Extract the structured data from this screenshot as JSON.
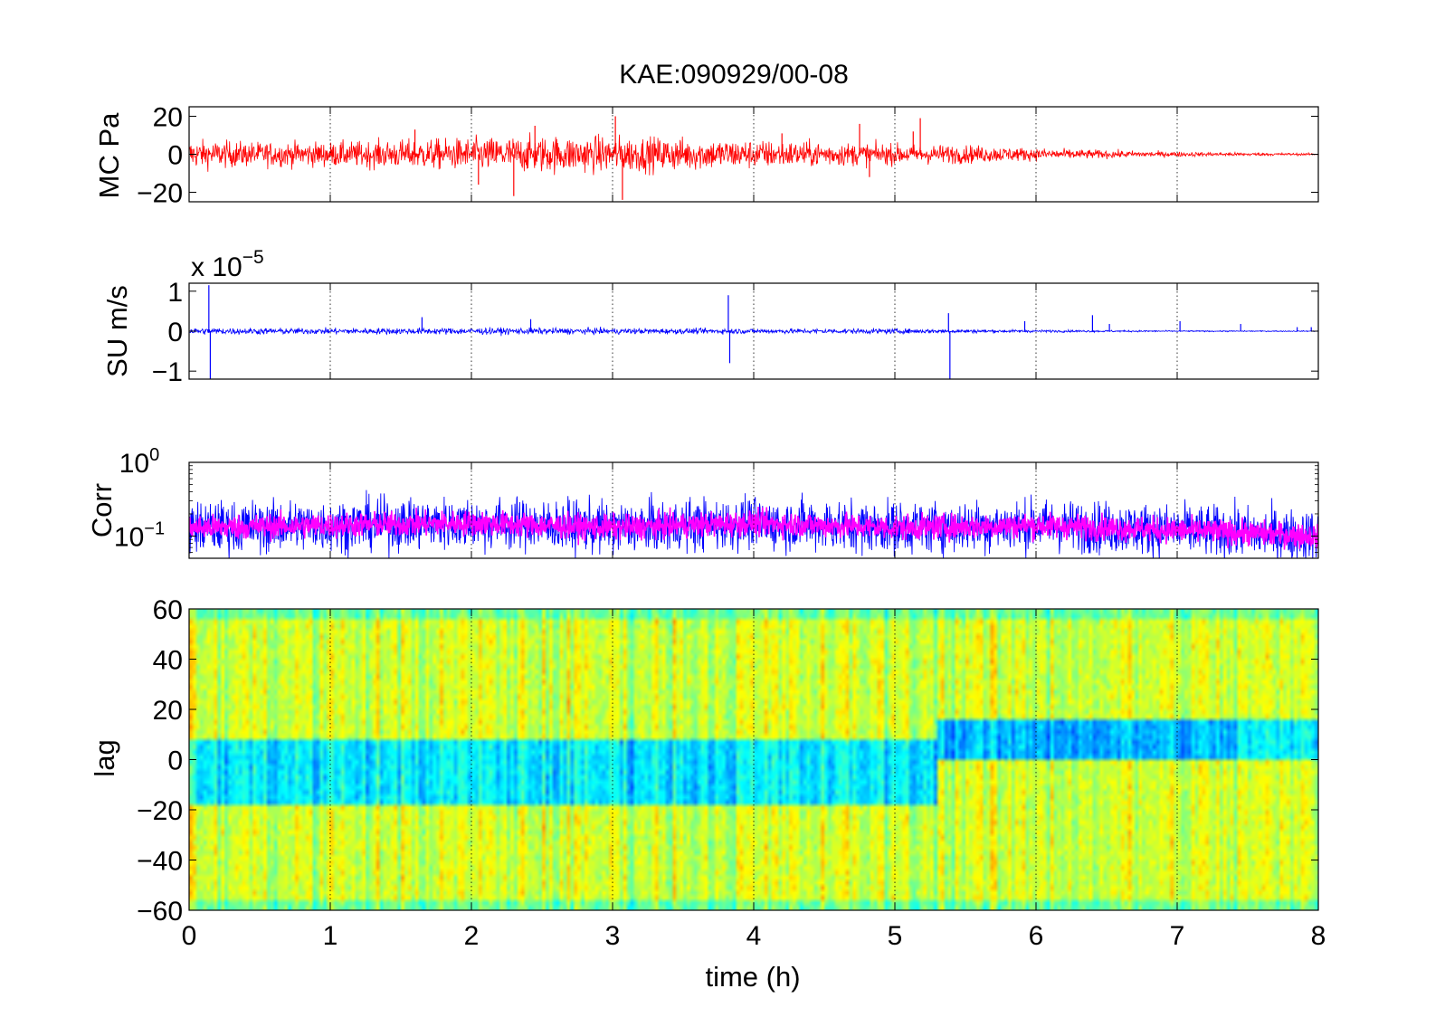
{
  "figure": {
    "title": "KAE:090929/00-08"
  },
  "chart_data": [
    {
      "type": "line",
      "id": "panel-mc",
      "ylabel": "MC Pa",
      "xlim": [
        0,
        8
      ],
      "ylim": [
        -25,
        25
      ],
      "yticks": [
        -20,
        0,
        20
      ],
      "ytick_labels": [
        "−20",
        "0",
        "20"
      ],
      "xticks": [
        0,
        1,
        2,
        3,
        4,
        5,
        6,
        7,
        8
      ],
      "grid": "x-dotted",
      "series": [
        {
          "color": "#ff0000",
          "envelope_x": [
            0,
            0.5,
            1,
            1.5,
            2,
            2.5,
            3,
            3.5,
            4,
            4.5,
            5,
            5.5,
            6,
            6.5,
            7,
            7.5,
            8
          ],
          "envelope_y": [
            7,
            6,
            6,
            7,
            8,
            9,
            9,
            8,
            7,
            6,
            5,
            4.5,
            3,
            2,
            1.2,
            0.8,
            0.5
          ],
          "spikes": [
            [
              1.6,
              13
            ],
            [
              2.3,
              -22
            ],
            [
              2.05,
              -16
            ],
            [
              2.45,
              15
            ],
            [
              3.02,
              20
            ],
            [
              3.07,
              -24
            ],
            [
              4.2,
              11
            ],
            [
              4.75,
              16
            ],
            [
              4.82,
              -12
            ],
            [
              5.13,
              12
            ],
            [
              5.18,
              19
            ]
          ]
        }
      ]
    },
    {
      "type": "line",
      "id": "panel-su",
      "ylabel": "SU m/s",
      "exponent_base": "x 10",
      "exponent_power": "−5",
      "xlim": [
        0,
        8
      ],
      "ylim": [
        -1.2,
        1.2
      ],
      "yticks": [
        -1,
        0,
        1
      ],
      "ytick_labels": [
        "−1",
        "0",
        "1"
      ],
      "xticks": [
        0,
        1,
        2,
        3,
        4,
        5,
        6,
        7,
        8
      ],
      "grid": "x-dotted",
      "series": [
        {
          "color": "#0000ff",
          "envelope_x": [
            0,
            1,
            2,
            3,
            4,
            5,
            6,
            7,
            8
          ],
          "envelope_y": [
            0.08,
            0.07,
            0.08,
            0.07,
            0.06,
            0.06,
            0.03,
            0.015,
            0.01
          ],
          "spikes": [
            [
              0.14,
              1.15
            ],
            [
              0.15,
              -1.2
            ],
            [
              1.65,
              0.35
            ],
            [
              2.42,
              0.3
            ],
            [
              3.82,
              0.9
            ],
            [
              3.83,
              -0.8
            ],
            [
              5.38,
              0.45
            ],
            [
              5.39,
              -1.2
            ],
            [
              5.92,
              0.25
            ],
            [
              6.4,
              0.4
            ],
            [
              6.52,
              0.18
            ],
            [
              7.02,
              0.25
            ],
            [
              7.45,
              0.18
            ],
            [
              7.85,
              0.1
            ],
            [
              7.95,
              0.1
            ]
          ]
        }
      ]
    },
    {
      "type": "line",
      "id": "panel-corr",
      "ylabel": "Corr",
      "yscale": "log",
      "xlim": [
        0,
        8
      ],
      "ylim": [
        0.05,
        1
      ],
      "yticks": [
        0.1,
        1
      ],
      "ytick_labels": [
        {
          "base": "10",
          "exp": "−1"
        },
        {
          "base": "10",
          "exp": "0"
        }
      ],
      "xticks": [
        0,
        1,
        2,
        3,
        4,
        5,
        6,
        7,
        8
      ],
      "grid": "x-dotted",
      "series": [
        {
          "color": "#0000ff",
          "level_x": [
            0,
            1,
            2,
            3,
            4,
            5,
            6,
            7,
            8
          ],
          "level_y": [
            0.13,
            0.14,
            0.15,
            0.13,
            0.15,
            0.13,
            0.14,
            0.12,
            0.1
          ]
        },
        {
          "color": "#ff00ff",
          "level_x": [
            0,
            1,
            2,
            3,
            4,
            5,
            6,
            7,
            8
          ],
          "level_y": [
            0.13,
            0.14,
            0.15,
            0.13,
            0.15,
            0.13,
            0.14,
            0.12,
            0.1
          ]
        }
      ]
    },
    {
      "type": "heatmap",
      "id": "panel-lag",
      "ylabel": "lag",
      "xlabel": "time (h)",
      "xlim": [
        0,
        8
      ],
      "ylim": [
        -60,
        60
      ],
      "yticks": [
        -60,
        -40,
        -20,
        0,
        20,
        40,
        60
      ],
      "ytick_labels": [
        "−60",
        "−40",
        "−20",
        "0",
        "20",
        "40",
        "60"
      ],
      "xticks": [
        0,
        1,
        2,
        3,
        4,
        5,
        6,
        7,
        8
      ],
      "xtick_labels": [
        "0",
        "1",
        "2",
        "3",
        "4",
        "5",
        "6",
        "7",
        "8"
      ],
      "colormap": "jet",
      "band_low_lag": [
        -17,
        8
      ],
      "band_low_lag_late": [
        0,
        15
      ],
      "band_low_lag_late_start": 5.3
    }
  ]
}
